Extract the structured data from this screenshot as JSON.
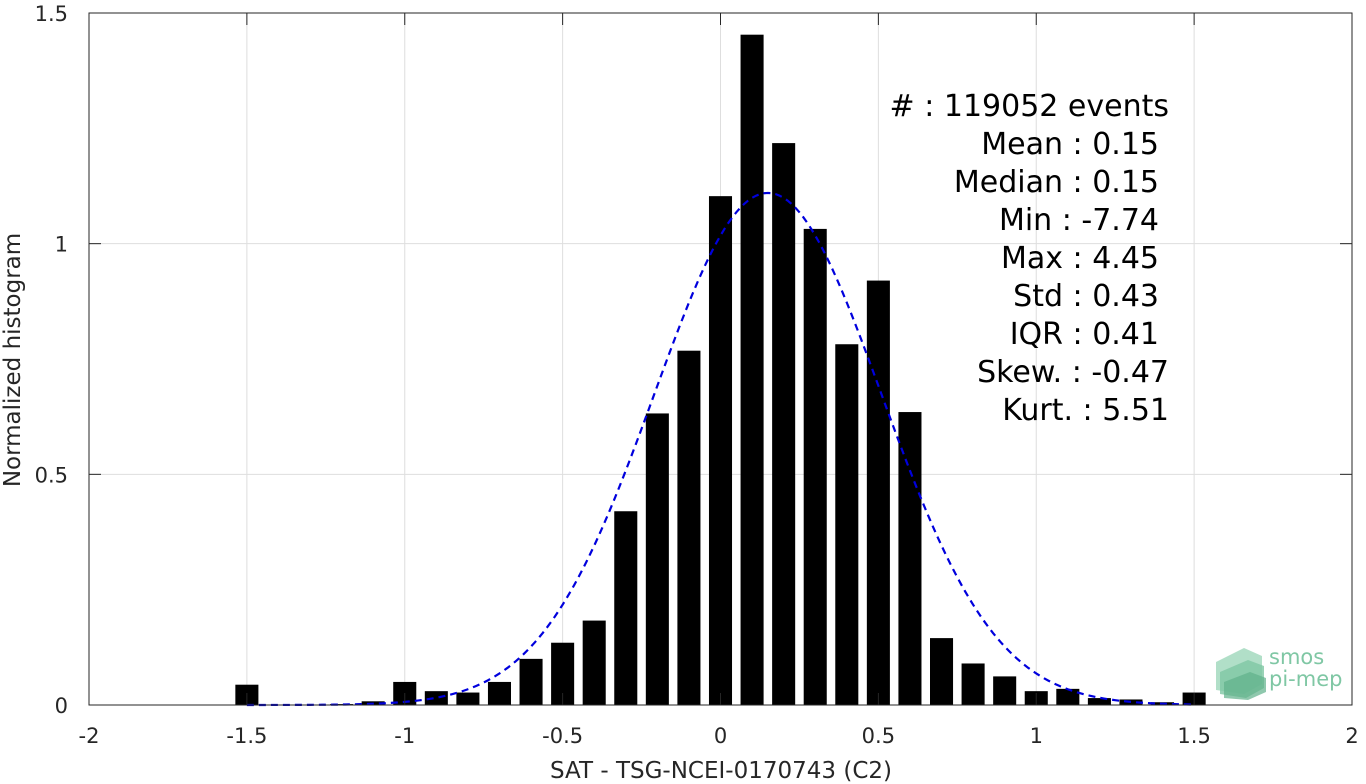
{
  "chart_data": {
    "type": "bar",
    "xlabel": "SAT - TSG-NCEI-0170743 (C2)",
    "ylabel": "Normalized histogram",
    "xlim": [
      -2,
      2
    ],
    "ylim": [
      0,
      1.5
    ],
    "xticks": [
      -2,
      -1.5,
      -1,
      -0.5,
      0,
      0.5,
      1,
      1.5,
      2
    ],
    "xtick_labels": [
      "-2",
      "-1.5",
      "-1",
      "-0.5",
      "0",
      "0.5",
      "1",
      "1.5",
      "2"
    ],
    "yticks": [
      0,
      0.5,
      1,
      1.5
    ],
    "ytick_labels": [
      "0",
      "0.5",
      "1",
      "1.5"
    ],
    "grid": true,
    "bar_color": "#000000",
    "bin_width": 0.1,
    "bars": {
      "x": [
        -1.5,
        -1.4,
        -1.3,
        -1.2,
        -1.1,
        -1.0,
        -0.9,
        -0.8,
        -0.7,
        -0.6,
        -0.5,
        -0.4,
        -0.3,
        -0.2,
        -0.1,
        0.0,
        0.1,
        0.2,
        0.3,
        0.4,
        0.5,
        0.6,
        0.7,
        0.8,
        0.9,
        1.0,
        1.1,
        1.2,
        1.3,
        1.4,
        1.5
      ],
      "values": [
        0.044,
        0.001,
        0.001,
        0.002,
        0.008,
        0.05,
        0.03,
        0.027,
        0.05,
        0.1,
        0.135,
        0.183,
        0.42,
        0.632,
        0.768,
        1.103,
        1.453,
        1.218,
        1.032,
        0.782,
        0.92,
        0.635,
        0.145,
        0.09,
        0.062,
        0.03,
        0.035,
        0.015,
        0.012,
        0.006,
        0.027
      ]
    },
    "fit_curve": {
      "type": "gaussian",
      "style": "dashed",
      "color": "#0000dd",
      "mean": 0.15,
      "std": 0.36,
      "peak": 1.11,
      "x_range": [
        -1.5,
        1.5
      ]
    },
    "stats": [
      "#  : 119052 events",
      "Mean : 0.15",
      "Median : 0.15",
      "Min : -7.74",
      "Max : 4.45",
      "Std : 0.43",
      "IQR : 0.41",
      "Skew. : -0.47",
      "Kurt. : 5.51"
    ]
  },
  "logo": {
    "line1": "smos",
    "line2": "pi-mep"
  }
}
